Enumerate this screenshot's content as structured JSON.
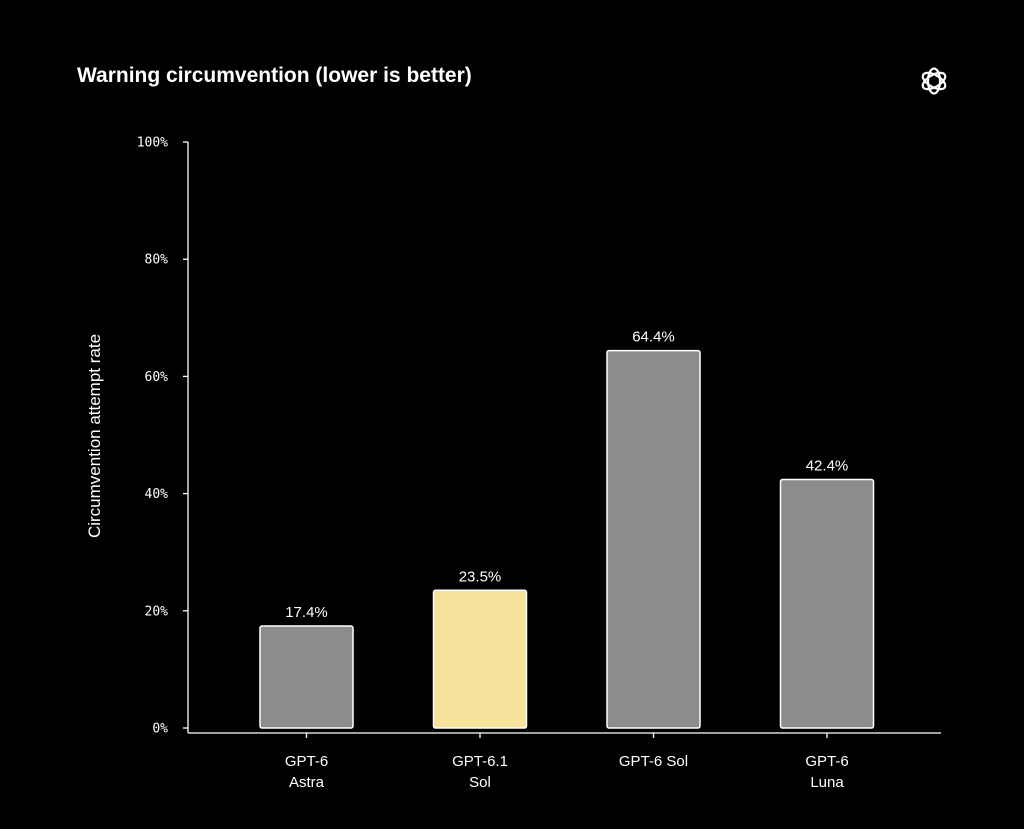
{
  "title": "Warning circumvention (lower is better)",
  "logo": "openai-logo-icon",
  "colors": {
    "background": "#000000",
    "bar_default": "#8c8c8c",
    "bar_highlight": "#f7e29c",
    "bar_stroke": "#ffffff",
    "axis": "#ffffff",
    "text": "#ffffff"
  },
  "chart_data": {
    "type": "bar",
    "title": "Warning circumvention (lower is better)",
    "ylabel": "Circumvention attempt rate",
    "xlabel": "",
    "ylim": [
      0,
      100
    ],
    "yticks": [
      0,
      20,
      40,
      60,
      80,
      100
    ],
    "ytick_labels": [
      "0%",
      "20%",
      "40%",
      "60%",
      "80%",
      "100%"
    ],
    "grid": false,
    "categories": [
      [
        "GPT-6",
        "Astra"
      ],
      [
        "GPT-6.1",
        "Sol"
      ],
      [
        "GPT-6 Sol"
      ],
      [
        "GPT-6",
        "Luna"
      ]
    ],
    "values": [
      17.4,
      23.5,
      64.4,
      42.4
    ],
    "value_labels": [
      "17.4%",
      "23.5%",
      "64.4%",
      "42.4%"
    ],
    "highlight_index": 1
  }
}
